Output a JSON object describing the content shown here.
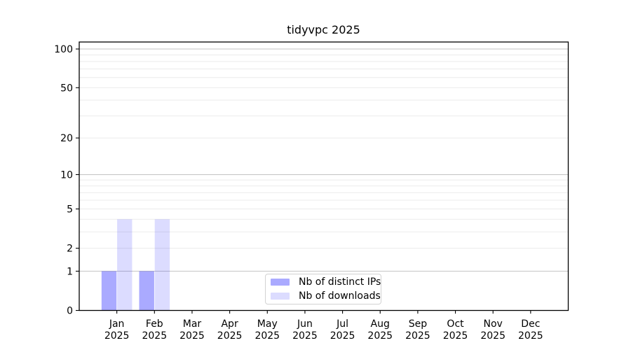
{
  "chart_data": {
    "type": "bar",
    "title": "tidyvpc 2025",
    "categories": [
      "Jan 2025",
      "Feb 2025",
      "Mar 2025",
      "Apr 2025",
      "May 2025",
      "Jun 2025",
      "Jul 2025",
      "Aug 2025",
      "Sep 2025",
      "Oct 2025",
      "Nov 2025",
      "Dec 2025"
    ],
    "series": [
      {
        "name": "Nb of distinct IPs",
        "color": "#a9a9f6",
        "fill": "rgba(0,0,255,0.335)",
        "values": [
          1,
          1,
          0,
          0,
          0,
          0,
          0,
          0,
          0,
          0,
          0,
          0
        ]
      },
      {
        "name": "Nb of downloads",
        "color": "#dcdcfa",
        "fill": "rgba(0,0,255,0.137)",
        "values": [
          4,
          4,
          0,
          0,
          0,
          0,
          0,
          0,
          0,
          0,
          0,
          0
        ]
      }
    ],
    "y_axis": {
      "scale": "log1p",
      "tick_labels": [
        "100",
        "50",
        "20",
        "10",
        "5",
        "2",
        "1",
        "0"
      ],
      "ticks": [
        100,
        50,
        20,
        10,
        5,
        2,
        1,
        0
      ],
      "ylim": [
        0,
        113
      ],
      "major_gridlines": [
        1,
        10,
        100
      ],
      "minor_gridlines": [
        2,
        3,
        4,
        5,
        6,
        7,
        8,
        9,
        20,
        30,
        40,
        50,
        60,
        70,
        80,
        90
      ]
    },
    "x_axis": {
      "tick_label_line2": "2025"
    },
    "legend": {
      "position": "lower center",
      "items": [
        "Nb of distinct IPs",
        "Nb of downloads"
      ]
    },
    "grid": "on",
    "colors": {
      "spine": "#000000",
      "major_grid": "#c3c3c3",
      "minor_grid": "#ebebeb",
      "text": "#000000",
      "legend_border": "#d2d2d2",
      "background": "#ffffff"
    }
  }
}
